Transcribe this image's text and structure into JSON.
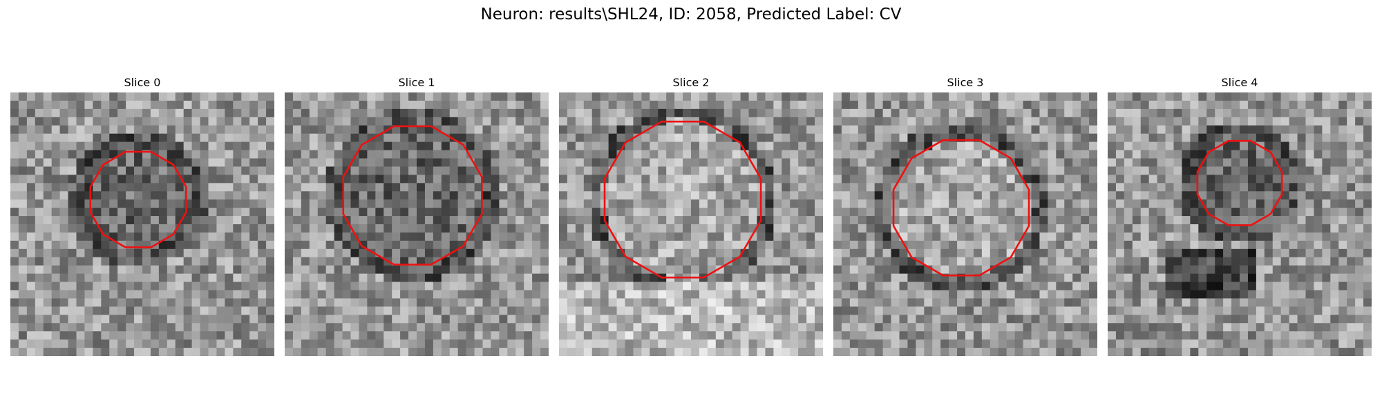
{
  "figure": {
    "title": "Neuron: results\\SHL24, ID: 2058, Predicted Label: CV"
  },
  "panels": [
    {
      "title": "Slice 0",
      "interior": "dark"
    },
    {
      "title": "Slice 1",
      "interior": "dark"
    },
    {
      "title": "Slice 2",
      "interior": "bright"
    },
    {
      "title": "Slice 3",
      "interior": "bright"
    },
    {
      "title": "Slice 4",
      "interior": "dark"
    }
  ],
  "style": {
    "contour_color": "#ee1111",
    "colormap": "grayscale"
  }
}
